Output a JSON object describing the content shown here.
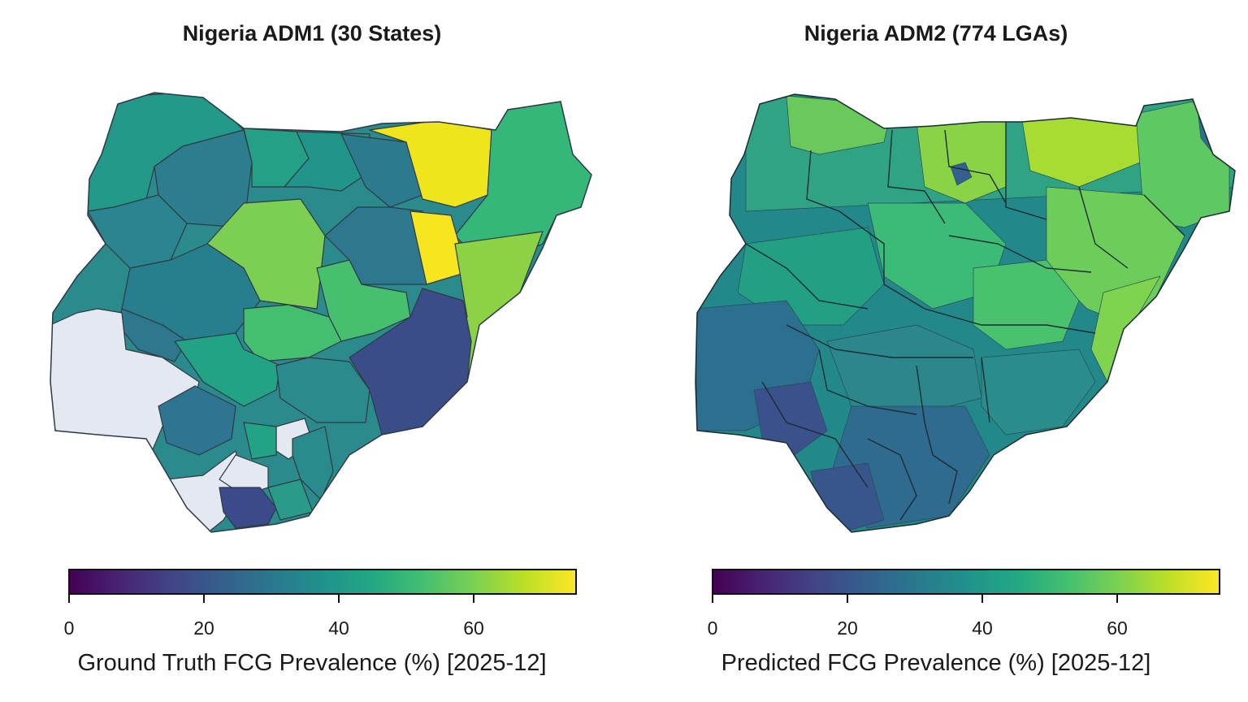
{
  "panels": [
    {
      "title": "Nigeria ADM1 (30 States)",
      "colorbar": {
        "label": "Ground Truth FCG Prevalence (%) [2025-12]",
        "ticks": [
          "0",
          "20",
          "40",
          "60"
        ],
        "range": [
          0,
          75
        ],
        "colormap": "viridis"
      }
    },
    {
      "title": "Nigeria ADM2 (774 LGAs)",
      "colorbar": {
        "label": "Predicted FCG Prevalence (%) [2025-12]",
        "ticks": [
          "0",
          "20",
          "40",
          "60"
        ],
        "range": [
          0,
          75
        ],
        "colormap": "viridis"
      }
    }
  ],
  "colors": {
    "no_data": "#e4e9f1",
    "border": "#2f3a44",
    "viridis_low": "#440154",
    "viridis_high": "#fde725"
  }
}
